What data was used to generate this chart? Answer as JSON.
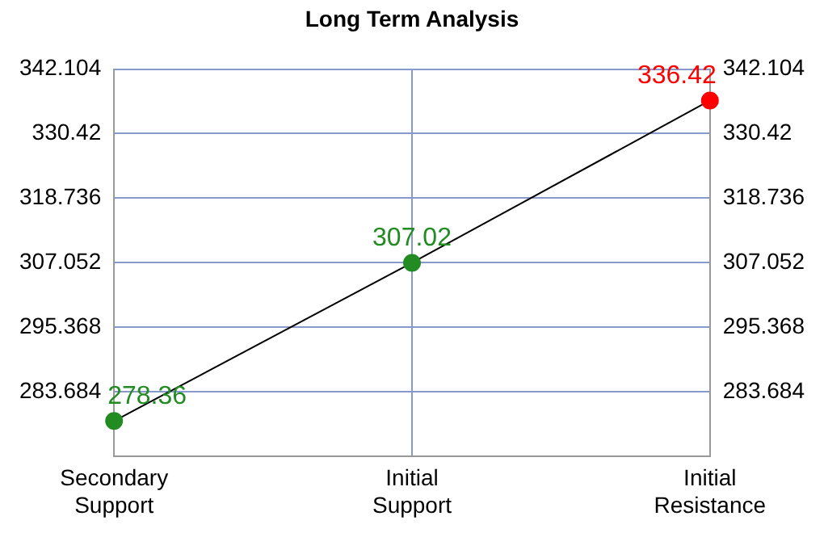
{
  "chart_data": {
    "type": "line",
    "title": "Long Term Analysis",
    "categories": [
      "Secondary\nSupport",
      "Initial\nSupport",
      "Initial\nResistance"
    ],
    "values": [
      278.36,
      307.02,
      336.42
    ],
    "color": "#000000",
    "colors": [
      "#228b22",
      "#228b22",
      "#ff0000"
    ],
    "data_labels": true,
    "marker": "circle",
    "ylim": [
      272,
      342.104
    ],
    "yticks": [
      283.684,
      295.368,
      307.052,
      318.736,
      330.42,
      342.104
    ],
    "y2lim": [
      272,
      342.104
    ],
    "y2ticks": [
      283.684,
      295.368,
      307.052,
      318.736,
      330.42,
      342.104
    ],
    "grid": true,
    "legend": false
  }
}
